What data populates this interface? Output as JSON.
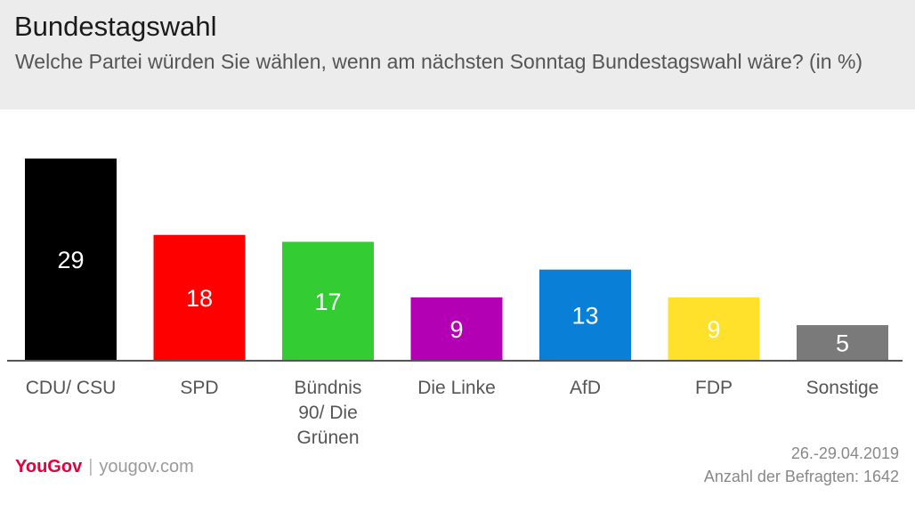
{
  "header": {
    "title": "Bundestagswahl",
    "subtitle": "Welche Partei würden Sie wählen, wenn am nächsten Sonntag Bundestagswahl wäre? (in %)"
  },
  "chart_data": {
    "type": "bar",
    "title": "Bundestagswahl",
    "subtitle": "Welche Partei würden Sie wählen, wenn am nächsten Sonntag Bundestagswahl wäre? (in %)",
    "categories": [
      "CDU/ CSU",
      "SPD",
      "Bündnis 90/ Die Grünen",
      "Die Linke",
      "AfD",
      "FDP",
      "Sonstige"
    ],
    "category_lines": [
      [
        "CDU/ CSU"
      ],
      [
        "SPD"
      ],
      [
        "Bündnis",
        "90/ Die",
        "Grünen"
      ],
      [
        "Die Linke"
      ],
      [
        "AfD"
      ],
      [
        "FDP"
      ],
      [
        "Sonstige"
      ]
    ],
    "values": [
      29,
      18,
      17,
      9,
      13,
      9,
      5
    ],
    "colors": [
      "#000000",
      "#ff0000",
      "#33cc33",
      "#b400b4",
      "#0a7fd8",
      "#ffe02a",
      "#7a7a7a"
    ],
    "label_colors": [
      "#ffffff",
      "#ffffff",
      "#ffffff",
      "#ffffff",
      "#ffffff",
      "#ffffff",
      "#ffffff"
    ],
    "unit": "%",
    "ylim": [
      0,
      29
    ],
    "grid": false,
    "legend": "none",
    "xlabel": "",
    "ylabel": ""
  },
  "footer": {
    "brand_you": "You",
    "brand_gov": "Gov",
    "separator": "|",
    "site": "yougov.com",
    "date": "26.-29.04.2019",
    "respondents": "Anzahl der Befragten: 1642"
  }
}
